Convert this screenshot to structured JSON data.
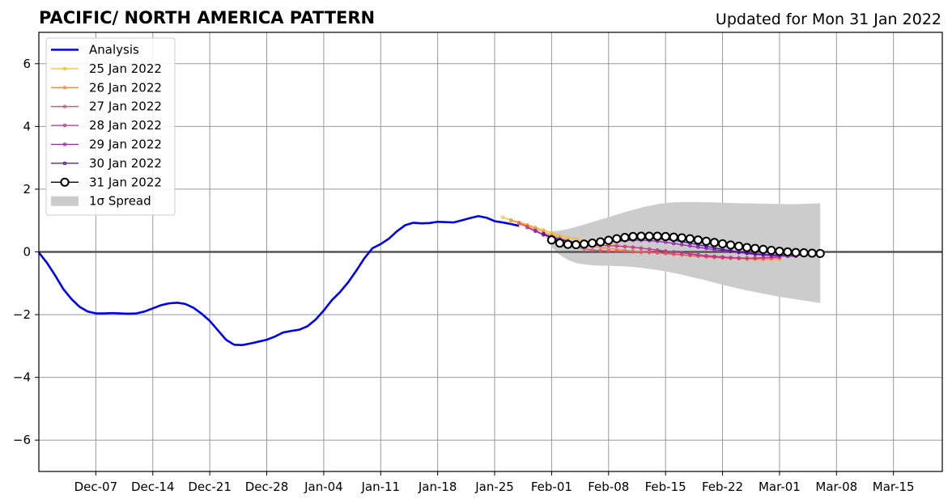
{
  "chart_data": {
    "type": "line",
    "title": "PACIFIC/ NORTH AMERICA PATTERN",
    "subtitle": "Updated for Mon 31 Jan 2022",
    "xlabel": "",
    "ylabel": "",
    "x_range": [
      "2021-11-30",
      "2022-03-21"
    ],
    "ylim": [
      -7,
      7
    ],
    "yticks": [
      -6,
      -4,
      -2,
      0,
      2,
      4,
      6
    ],
    "ytick_labels": [
      "−6",
      "−4",
      "−2",
      "0",
      "2",
      "4",
      "6"
    ],
    "xticks": [
      {
        "date": "2021-12-07",
        "label": "Dec-07"
      },
      {
        "date": "2021-12-14",
        "label": "Dec-14"
      },
      {
        "date": "2021-12-21",
        "label": "Dec-21"
      },
      {
        "date": "2021-12-28",
        "label": "Dec-28"
      },
      {
        "date": "2022-01-04",
        "label": "Jan-04"
      },
      {
        "date": "2022-01-11",
        "label": "Jan-11"
      },
      {
        "date": "2022-01-18",
        "label": "Jan-18"
      },
      {
        "date": "2022-01-25",
        "label": "Jan-25"
      },
      {
        "date": "2022-02-01",
        "label": "Feb-01"
      },
      {
        "date": "2022-02-08",
        "label": "Feb-08"
      },
      {
        "date": "2022-02-15",
        "label": "Feb-15"
      },
      {
        "date": "2022-02-22",
        "label": "Feb-22"
      },
      {
        "date": "2022-03-01",
        "label": "Mar-01"
      },
      {
        "date": "2022-03-08",
        "label": "Mar-08"
      },
      {
        "date": "2022-03-15",
        "label": "Mar-15"
      }
    ],
    "grid": true,
    "legend_position": "top-left",
    "colors": {
      "analysis": "#0000ee",
      "zero_line": "#555555",
      "spread": "#cccccc",
      "grid": "#999999"
    },
    "legend": [
      "Analysis",
      "25 Jan 2022",
      "26 Jan 2022",
      "27 Jan 2022",
      "28 Jan 2022",
      "29 Jan 2022",
      "30 Jan 2022",
      "31 Jan 2022",
      "1σ Spread"
    ],
    "analysis": {
      "name": "Analysis",
      "start": "2021-11-30",
      "values": [
        -0.02,
        -0.35,
        -0.75,
        -1.18,
        -1.5,
        -1.75,
        -1.9,
        -1.96,
        -1.96,
        -1.95,
        -1.96,
        -1.97,
        -1.96,
        -1.9,
        -1.8,
        -1.7,
        -1.64,
        -1.62,
        -1.66,
        -1.78,
        -1.97,
        -2.2,
        -2.5,
        -2.8,
        -2.96,
        -2.97,
        -2.92,
        -2.86,
        -2.8,
        -2.7,
        -2.57,
        -2.52,
        -2.48,
        -2.37,
        -2.16,
        -1.87,
        -1.54,
        -1.28,
        -0.97,
        -0.6,
        -0.2,
        0.12,
        0.25,
        0.42,
        0.66,
        0.85,
        0.93,
        0.91,
        0.92,
        0.96,
        0.95,
        0.94,
        1.01,
        1.08,
        1.14,
        1.09,
        0.98,
        0.94,
        0.89,
        0.83
      ]
    },
    "forecasts": [
      {
        "name": "25 Jan 2022",
        "color": "#f6b93b",
        "start": "2022-01-26",
        "values": [
          1.1,
          1.02,
          0.95,
          0.87,
          0.79,
          0.7,
          0.61,
          0.53,
          0.46,
          0.41,
          0.36,
          0.32,
          0.28,
          0.24,
          0.21,
          0.18,
          0.15,
          0.12,
          0.09,
          0.06,
          0.03,
          0.0,
          -0.03,
          -0.06,
          -0.09,
          -0.12,
          -0.15,
          -0.18,
          -0.2,
          -0.22,
          -0.23,
          -0.24,
          -0.25,
          -0.25,
          -0.25
        ]
      },
      {
        "name": "26 Jan 2022",
        "color": "#f08a4b",
        "start": "2022-01-27",
        "values": [
          1.0,
          0.93,
          0.84,
          0.74,
          0.64,
          0.54,
          0.45,
          0.37,
          0.3,
          0.24,
          0.19,
          0.15,
          0.11,
          0.08,
          0.05,
          0.03,
          0.01,
          -0.01,
          -0.03,
          -0.05,
          -0.08,
          -0.1,
          -0.12,
          -0.14,
          -0.16,
          -0.18,
          -0.2,
          -0.21,
          -0.22,
          -0.23,
          -0.23,
          -0.23,
          -0.22,
          -0.21
        ]
      },
      {
        "name": "27 Jan 2022",
        "color": "#e0506a",
        "start": "2022-01-28",
        "values": [
          0.9,
          0.8,
          0.68,
          0.55,
          0.43,
          0.32,
          0.22,
          0.15,
          0.1,
          0.06,
          0.04,
          0.03,
          0.02,
          0.01,
          0.0,
          -0.01,
          -0.02,
          -0.03,
          -0.05,
          -0.07,
          -0.09,
          -0.11,
          -0.13,
          -0.15,
          -0.17,
          -0.18,
          -0.19,
          -0.2,
          -0.2,
          -0.19,
          -0.18,
          -0.17,
          -0.16
        ]
      },
      {
        "name": "28 Jan 2022",
        "color": "#b8308f",
        "start": "2022-01-29",
        "values": [
          0.78,
          0.66,
          0.54,
          0.44,
          0.35,
          0.28,
          0.24,
          0.22,
          0.21,
          0.21,
          0.2,
          0.19,
          0.17,
          0.15,
          0.12,
          0.09,
          0.06,
          0.03,
          0.0,
          -0.03,
          -0.06,
          -0.09,
          -0.12,
          -0.14,
          -0.16,
          -0.18,
          -0.19,
          -0.2,
          -0.2,
          -0.19,
          -0.18,
          -0.17
        ]
      },
      {
        "name": "29 Jan 2022",
        "color": "#8e24aa",
        "start": "2022-01-30",
        "values": [
          0.68,
          0.56,
          0.47,
          0.4,
          0.34,
          0.3,
          0.28,
          0.28,
          0.3,
          0.32,
          0.34,
          0.36,
          0.37,
          0.37,
          0.36,
          0.34,
          0.31,
          0.27,
          0.23,
          0.19,
          0.15,
          0.11,
          0.07,
          0.04,
          0.01,
          -0.02,
          -0.05,
          -0.08,
          -0.1,
          -0.12,
          -0.13,
          -0.14,
          -0.14
        ]
      },
      {
        "name": "30 Jan 2022",
        "color": "#4b0f96",
        "start": "2022-01-31",
        "values": [
          0.58,
          0.48,
          0.4,
          0.34,
          0.3,
          0.28,
          0.28,
          0.3,
          0.33,
          0.36,
          0.39,
          0.42,
          0.43,
          0.43,
          0.42,
          0.4,
          0.37,
          0.33,
          0.28,
          0.23,
          0.18,
          0.13,
          0.08,
          0.04,
          0.0,
          -0.03,
          -0.06,
          -0.08,
          -0.09,
          -0.1,
          -0.1,
          -0.1,
          -0.1
        ]
      },
      {
        "name": "31 Jan 2022",
        "color": "#000000",
        "start": "2022-02-01",
        "values": [
          0.38,
          0.28,
          0.24,
          0.23,
          0.25,
          0.28,
          0.32,
          0.37,
          0.42,
          0.46,
          0.49,
          0.5,
          0.5,
          0.5,
          0.49,
          0.47,
          0.45,
          0.42,
          0.38,
          0.34,
          0.3,
          0.26,
          0.22,
          0.18,
          0.14,
          0.11,
          0.08,
          0.05,
          0.02,
          0.0,
          -0.02,
          -0.03,
          -0.04,
          -0.05
        ]
      }
    ],
    "spread": {
      "name": "1σ Spread",
      "start": "2022-02-01",
      "upper": [
        0.65,
        0.68,
        0.73,
        0.8,
        0.87,
        0.95,
        1.03,
        1.11,
        1.19,
        1.27,
        1.34,
        1.41,
        1.47,
        1.52,
        1.56,
        1.58,
        1.59,
        1.59,
        1.59,
        1.58,
        1.58,
        1.57,
        1.56,
        1.55,
        1.55,
        1.54,
        1.54,
        1.53,
        1.53,
        1.52,
        1.52,
        1.53,
        1.54,
        1.55
      ],
      "lower": [
        0.15,
        -0.1,
        -0.25,
        -0.35,
        -0.4,
        -0.43,
        -0.44,
        -0.44,
        -0.45,
        -0.46,
        -0.48,
        -0.51,
        -0.54,
        -0.58,
        -0.62,
        -0.67,
        -0.73,
        -0.79,
        -0.85,
        -0.91,
        -0.98,
        -1.05,
        -1.11,
        -1.17,
        -1.23,
        -1.28,
        -1.33,
        -1.38,
        -1.43,
        -1.47,
        -1.51,
        -1.55,
        -1.59,
        -1.63
      ]
    }
  }
}
